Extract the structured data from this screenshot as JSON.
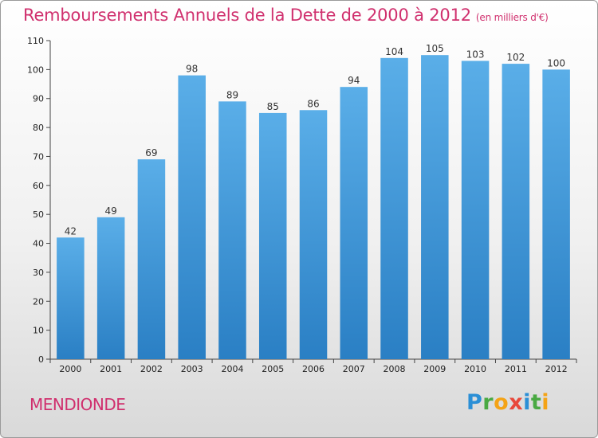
{
  "header": {
    "title": "Remboursements Annuels de la Dette de 2000 à 2012",
    "subtitle": "(en milliers d'€)"
  },
  "footer": {
    "town": "MENDIONDE",
    "logo": [
      "P",
      "r",
      "o",
      "x",
      "i",
      "t",
      "i"
    ]
  },
  "colors": {
    "title": "#d0306e",
    "bar_top": "#5aaee8",
    "bar_bottom": "#2a7fc4"
  },
  "chart_data": {
    "type": "bar",
    "title": "Remboursements Annuels de la Dette de 2000 à 2012",
    "xlabel": "",
    "ylabel": "",
    "categories": [
      "2000",
      "2001",
      "2002",
      "2003",
      "2004",
      "2005",
      "2006",
      "2007",
      "2008",
      "2009",
      "2010",
      "2011",
      "2012"
    ],
    "values": [
      42,
      49,
      69,
      98,
      89,
      85,
      86,
      94,
      104,
      105,
      103,
      102,
      100
    ],
    "ylim": [
      0,
      110
    ],
    "yticks": [
      0,
      10,
      20,
      30,
      40,
      50,
      60,
      70,
      80,
      90,
      100,
      110
    ],
    "grid": false,
    "data_labels": true
  }
}
